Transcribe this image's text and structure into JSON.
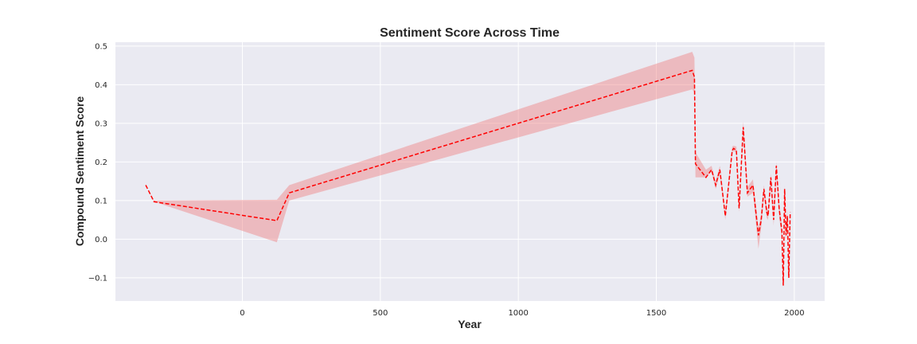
{
  "chart_data": {
    "type": "line",
    "title": "Sentiment Score Across Time",
    "xlabel": "Year",
    "ylabel": "Compound Sentiment Score",
    "xlim": [
      -460,
      2110
    ],
    "ylim": [
      -0.16,
      0.51
    ],
    "xticks": [
      0,
      500,
      1000,
      1500,
      2000
    ],
    "xtick_labels": [
      "0",
      "500",
      "1000",
      "1500",
      "2000"
    ],
    "yticks": [
      -0.1,
      0.0,
      0.1,
      0.2,
      0.3,
      0.4,
      0.5
    ],
    "ytick_labels": [
      "−0.1",
      "0.0",
      "0.1",
      "0.2",
      "0.3",
      "0.4",
      "0.5"
    ],
    "grid": true,
    "line_style": "dashed",
    "colors": {
      "line": "#ff0000",
      "band": "#f08080",
      "plot_bg": "#eaeaf2",
      "grid": "#ffffff"
    },
    "series": [
      {
        "x": [
          -350,
          -320,
          125,
          170,
          1630,
          1638,
          1642,
          1680,
          1700,
          1715,
          1730,
          1750,
          1775,
          1780,
          1790,
          1800,
          1815,
          1830,
          1850,
          1870,
          1880,
          1890,
          1900,
          1905,
          1915,
          1925,
          1935,
          1945,
          1955,
          1960,
          1965,
          1970,
          1975,
          1980,
          1985
        ],
        "y": [
          0.14,
          0.097,
          0.048,
          0.12,
          0.437,
          0.42,
          0.195,
          0.16,
          0.18,
          0.14,
          0.18,
          0.06,
          0.23,
          0.235,
          0.23,
          0.08,
          0.29,
          0.12,
          0.14,
          0.01,
          0.05,
          0.13,
          0.07,
          0.06,
          0.16,
          0.05,
          0.19,
          0.08,
          0.02,
          -0.12,
          0.13,
          0.01,
          0.06,
          -0.1,
          0.07
        ],
        "lower": [
          0.14,
          0.097,
          -0.008,
          0.1,
          0.388,
          0.38,
          0.16,
          0.16,
          0.175,
          0.13,
          0.17,
          0.05,
          0.225,
          0.228,
          0.225,
          0.07,
          0.27,
          0.11,
          0.12,
          -0.025,
          0.03,
          0.115,
          0.055,
          0.05,
          0.145,
          0.035,
          0.17,
          0.06,
          0.0,
          -0.125,
          0.11,
          -0.005,
          0.04,
          -0.105,
          0.06
        ],
        "upper": [
          0.14,
          0.1,
          0.102,
          0.14,
          0.485,
          0.47,
          0.225,
          0.18,
          0.19,
          0.15,
          0.19,
          0.07,
          0.24,
          0.242,
          0.24,
          0.09,
          0.305,
          0.135,
          0.155,
          0.03,
          0.065,
          0.14,
          0.085,
          0.075,
          0.17,
          0.065,
          0.2,
          0.095,
          0.035,
          -0.11,
          0.14,
          0.025,
          0.075,
          -0.09,
          0.08
        ]
      }
    ]
  }
}
